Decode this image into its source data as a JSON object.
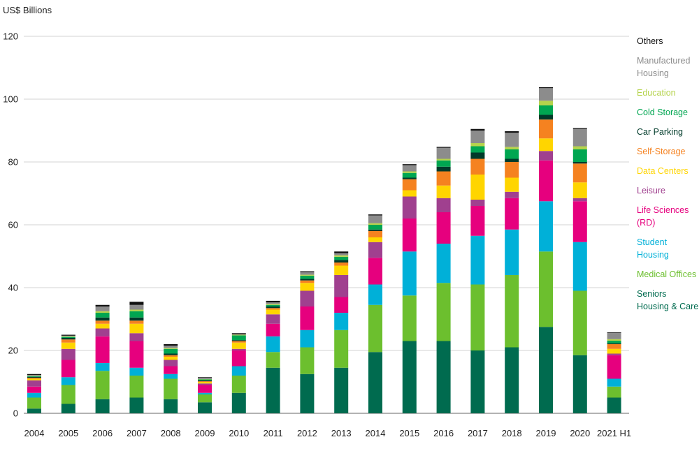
{
  "chart_data": {
    "type": "bar",
    "stacked": true,
    "ylabel": "US$ Billions",
    "ylim": [
      0,
      120
    ],
    "yticks": [
      0,
      20,
      40,
      60,
      80,
      100,
      120
    ],
    "grid": true,
    "legend_position": "right",
    "categories": [
      "2004",
      "2005",
      "2006",
      "2007",
      "2008",
      "2009",
      "2010",
      "2011",
      "2012",
      "2013",
      "2014",
      "2015",
      "2016",
      "2017",
      "2018",
      "2019",
      "2020",
      "2021 H1"
    ],
    "series": [
      {
        "name": "Seniors Housing & Care",
        "color": "#006b4f",
        "values": [
          1.5,
          3,
          4.5,
          5,
          4.5,
          3.5,
          6.5,
          14.5,
          12.5,
          14.5,
          19.5,
          23,
          23,
          20,
          21,
          27.5,
          18.5,
          5
        ]
      },
      {
        "name": "Medical Offices",
        "color": "#6cbf2e",
        "values": [
          3.5,
          6,
          9,
          7,
          6.5,
          2.5,
          5.5,
          5,
          8.5,
          12,
          15,
          14.5,
          18.5,
          21,
          23,
          24,
          20.5,
          3.5
        ]
      },
      {
        "name": "Student Housing",
        "color": "#00b0d8",
        "values": [
          1.5,
          2.5,
          2.5,
          2.5,
          1.5,
          0.5,
          3,
          5,
          5.5,
          5.5,
          6.5,
          14,
          12.5,
          15.5,
          14.5,
          16,
          15.5,
          2.5
        ]
      },
      {
        "name": "Life Sciences (RD)",
        "color": "#e6007e",
        "values": [
          2,
          5.5,
          8.5,
          8.5,
          2.5,
          2.5,
          5,
          4,
          7.5,
          5,
          8.5,
          10.5,
          10,
          9.5,
          10,
          13,
          13,
          7.5
        ]
      },
      {
        "name": "Leisure",
        "color": "#a0408f",
        "values": [
          2,
          3.5,
          2.5,
          2.5,
          2,
          0.5,
          0.5,
          3,
          5,
          7,
          5,
          7,
          4.5,
          2,
          2,
          3,
          1,
          0.5
        ]
      },
      {
        "name": "Data Centers",
        "color": "#ffd500",
        "values": [
          0.5,
          2,
          1.5,
          3,
          1,
          0.5,
          2,
          1.5,
          2.5,
          3,
          1.5,
          2,
          4,
          8,
          4.5,
          4,
          5,
          1.5
        ]
      },
      {
        "name": "Self-Storage",
        "color": "#f58220",
        "values": [
          0.3,
          1,
          1,
          1,
          0.5,
          0.2,
          0.5,
          0.5,
          0.8,
          1,
          2,
          3.5,
          4.5,
          5,
          5,
          6,
          6,
          1.5
        ]
      },
      {
        "name": "Car Parking",
        "color": "#003b2a",
        "values": [
          0.3,
          0.5,
          1,
          1,
          0.5,
          0.3,
          0.3,
          0.5,
          0.5,
          0.8,
          0.5,
          0.5,
          1.5,
          2,
          1,
          1.5,
          0.5,
          0.3
        ]
      },
      {
        "name": "Cold Storage",
        "color": "#00a651",
        "values": [
          0.2,
          0.3,
          1.5,
          2,
          1.5,
          0.3,
          1.5,
          0.5,
          1,
          1,
          1.5,
          1.5,
          2,
          2,
          3,
          3,
          4,
          0.8
        ]
      },
      {
        "name": "Education",
        "color": "#b5d34c",
        "values": [
          0.1,
          0.2,
          0.5,
          0.5,
          0.3,
          0.1,
          0.2,
          0.3,
          0.3,
          0.5,
          0.5,
          0.5,
          0.5,
          1,
          0.8,
          1.5,
          1,
          0.5
        ]
      },
      {
        "name": "Manufactured Housing",
        "color": "#8c8c8c",
        "values": [
          0.3,
          0.2,
          1.5,
          1.5,
          0.7,
          0.4,
          0.2,
          0.5,
          0.8,
          0.7,
          2.5,
          2,
          3.5,
          4,
          4.5,
          4,
          5.5,
          2
        ]
      },
      {
        "name": "Others",
        "color": "#111111",
        "values": [
          0.3,
          0.3,
          0.5,
          1,
          0.5,
          0.2,
          0.3,
          0.5,
          0.3,
          0.5,
          0.3,
          0.3,
          0.3,
          0.5,
          0.5,
          0.3,
          0.3,
          0.2
        ]
      }
    ]
  }
}
